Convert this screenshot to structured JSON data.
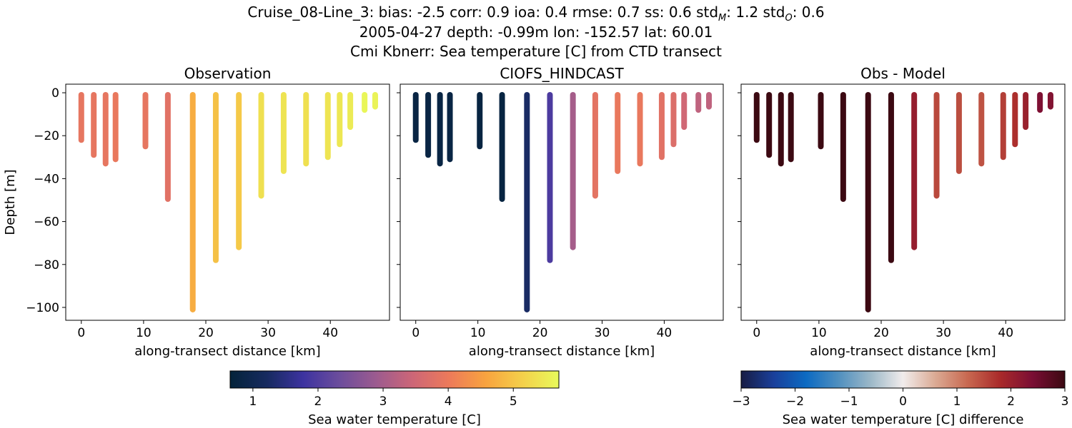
{
  "figure": {
    "title_lines": [
      "Cruise_08-Line_3: bias: -2.5  corr: 0.9  ioa: 0.4  rmse: 0.7  ss: 0.6  std",
      "2005-04-27 depth: -0.99m lon: -152.57 lat: 60.01",
      "Cmi Kbnerr: Sea temperature [C] from CTD transect"
    ],
    "title_tail": {
      "std_m_sub": "M",
      "std_m_value": ": 1.2  std",
      "std_o_sub": "O",
      "std_o_value": ": 0.6"
    }
  },
  "chart_data": [
    {
      "type": "scatter",
      "title": "Observation",
      "xlabel": "along-transect distance [km]",
      "ylabel": "Depth [m]",
      "xlim": [
        -2.5,
        49.5
      ],
      "ylim": [
        -106,
        4
      ],
      "xticks": [
        0,
        10,
        20,
        30,
        40
      ],
      "yticks": [
        0,
        -20,
        -40,
        -60,
        -80,
        -100
      ],
      "color_scale": "thermal",
      "color_range": [
        0.65,
        5.7
      ],
      "profiles": [
        {
          "x": 0.0,
          "bottom": -22,
          "value": 3.9
        },
        {
          "x": 2.0,
          "bottom": -29,
          "value": 3.9
        },
        {
          "x": 3.9,
          "bottom": -33,
          "value": 3.9
        },
        {
          "x": 5.5,
          "bottom": -31,
          "value": 3.95
        },
        {
          "x": 10.3,
          "bottom": -25,
          "value": 3.9
        },
        {
          "x": 13.9,
          "bottom": -49.5,
          "value": 3.8
        },
        {
          "x": 17.9,
          "bottom": -101,
          "value": 4.7
        },
        {
          "x": 21.6,
          "bottom": -78,
          "value": 4.95
        },
        {
          "x": 25.3,
          "bottom": -72,
          "value": 5.05
        },
        {
          "x": 28.9,
          "bottom": -48,
          "value": 5.35
        },
        {
          "x": 32.5,
          "bottom": -36.5,
          "value": 5.4
        },
        {
          "x": 36.1,
          "bottom": -33,
          "value": 5.35
        },
        {
          "x": 39.6,
          "bottom": -30,
          "value": 5.4
        },
        {
          "x": 41.5,
          "bottom": -24,
          "value": 5.45
        },
        {
          "x": 43.2,
          "bottom": -16,
          "value": 5.5
        },
        {
          "x": 45.5,
          "bottom": -8,
          "value": 5.65
        },
        {
          "x": 47.2,
          "bottom": -6.5,
          "value": 5.6
        }
      ]
    },
    {
      "type": "scatter",
      "title": "CIOFS_HINDCAST",
      "xlabel": "along-transect distance [km]",
      "ylabel": "",
      "xlim": [
        -2.5,
        49.5
      ],
      "ylim": [
        -106,
        4
      ],
      "xticks": [
        0,
        10,
        20,
        30,
        40
      ],
      "yticks": [
        0,
        -20,
        -40,
        -60,
        -80,
        -100
      ],
      "color_scale": "thermal",
      "color_range": [
        0.65,
        5.7
      ],
      "profiles": [
        {
          "x": 0.0,
          "bottom": -22,
          "value": 0.8
        },
        {
          "x": 2.0,
          "bottom": -29,
          "value": 0.8
        },
        {
          "x": 3.9,
          "bottom": -33,
          "value": 0.8
        },
        {
          "x": 5.5,
          "bottom": -31,
          "value": 0.8
        },
        {
          "x": 10.3,
          "bottom": -25,
          "value": 0.75
        },
        {
          "x": 13.9,
          "bottom": -49.5,
          "value": 0.75
        },
        {
          "x": 17.9,
          "bottom": -101,
          "value": 1.25
        },
        {
          "x": 21.6,
          "bottom": -78,
          "value": 1.95
        },
        {
          "x": 25.3,
          "bottom": -72,
          "value": 3.0
        },
        {
          "x": 28.9,
          "bottom": -48,
          "value": 3.85
        },
        {
          "x": 32.5,
          "bottom": -36.5,
          "value": 3.95
        },
        {
          "x": 36.1,
          "bottom": -33,
          "value": 3.95
        },
        {
          "x": 39.6,
          "bottom": -30,
          "value": 3.8
        },
        {
          "x": 41.5,
          "bottom": -24,
          "value": 3.7
        },
        {
          "x": 43.2,
          "bottom": -16,
          "value": 3.5
        },
        {
          "x": 45.5,
          "bottom": -8,
          "value": 3.3
        },
        {
          "x": 47.2,
          "bottom": -6.5,
          "value": 3.3
        }
      ]
    },
    {
      "type": "scatter",
      "title": "Obs - Model",
      "xlabel": "along-transect distance [km]",
      "ylabel": "",
      "xlim": [
        -2.5,
        49.5
      ],
      "ylim": [
        -106,
        4
      ],
      "xticks": [
        0,
        10,
        20,
        30,
        40
      ],
      "yticks": [
        0,
        -20,
        -40,
        -60,
        -80,
        -100
      ],
      "color_scale": "balance",
      "color_range": [
        -3,
        3
      ],
      "profiles": [
        {
          "x": 0.0,
          "bottom": -22,
          "value": 3.1
        },
        {
          "x": 2.0,
          "bottom": -29,
          "value": 3.1
        },
        {
          "x": 3.9,
          "bottom": -33,
          "value": 3.1
        },
        {
          "x": 5.5,
          "bottom": -31,
          "value": 3.15
        },
        {
          "x": 10.3,
          "bottom": -25,
          "value": 3.15
        },
        {
          "x": 13.9,
          "bottom": -49.5,
          "value": 3.05
        },
        {
          "x": 17.9,
          "bottom": -101,
          "value": 3.45
        },
        {
          "x": 21.6,
          "bottom": -78,
          "value": 3.0
        },
        {
          "x": 25.3,
          "bottom": -72,
          "value": 2.05
        },
        {
          "x": 28.9,
          "bottom": -48,
          "value": 1.5
        },
        {
          "x": 32.5,
          "bottom": -36.5,
          "value": 1.45
        },
        {
          "x": 36.1,
          "bottom": -33,
          "value": 1.4
        },
        {
          "x": 39.6,
          "bottom": -30,
          "value": 1.6
        },
        {
          "x": 41.5,
          "bottom": -24,
          "value": 1.75
        },
        {
          "x": 43.2,
          "bottom": -16,
          "value": 2.0
        },
        {
          "x": 45.5,
          "bottom": -8,
          "value": 2.35
        },
        {
          "x": 47.2,
          "bottom": -6.5,
          "value": 2.3
        }
      ]
    }
  ],
  "colorbars": [
    {
      "label": "Sea water temperature [C]",
      "scale": "thermal",
      "range": [
        0.65,
        5.7
      ],
      "ticks": [
        "1",
        "2",
        "3",
        "4",
        "5"
      ]
    },
    {
      "label": "Sea water temperature [C] difference",
      "scale": "balance",
      "range": [
        -3,
        3
      ],
      "ticks": [
        "−3",
        "−2",
        "−1",
        "0",
        "1",
        "2",
        "3"
      ]
    }
  ],
  "colors": {
    "thermal": [
      "#04233a",
      "#162a5f",
      "#3d33a0",
      "#6c4d9c",
      "#9c5b8f",
      "#cd6677",
      "#ed7a5a",
      "#f8a33f",
      "#f4d04a",
      "#e8fa5b"
    ],
    "balance": [
      "#181c43",
      "#1a3f9a",
      "#0c6ac2",
      "#4f8fbf",
      "#9cb8c8",
      "#f1ecec",
      "#dbaa94",
      "#c86850",
      "#a92a2a",
      "#7a0e34",
      "#3c0912"
    ]
  }
}
